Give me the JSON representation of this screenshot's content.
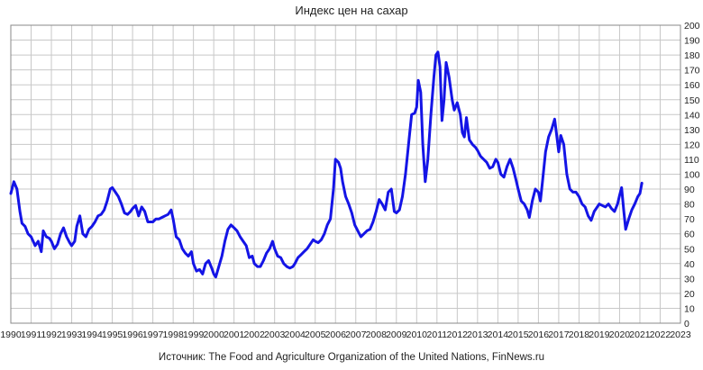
{
  "chart_data": {
    "type": "line",
    "title": "Индекс цен на сахар",
    "source": "Источник: The Food and Agriculture Organization of the United Nations, FinNews.ru",
    "xlabel": "",
    "ylabel": "",
    "xlim": [
      1990,
      2023
    ],
    "ylim": [
      0,
      200
    ],
    "x_ticks": [
      "1990",
      "1991",
      "1992",
      "1993",
      "1994",
      "1995",
      "1996",
      "1997",
      "1998",
      "1999",
      "2000",
      "2001",
      "2002",
      "2003",
      "2004",
      "2005",
      "2006",
      "2007",
      "2008",
      "2009",
      "2010",
      "2011",
      "2012",
      "2013",
      "2014",
      "2015",
      "2016",
      "2017",
      "2018",
      "2019",
      "2020",
      "2021",
      "2022",
      "2023"
    ],
    "y_ticks": [
      0,
      10,
      20,
      30,
      40,
      50,
      60,
      70,
      80,
      90,
      100,
      110,
      120,
      130,
      140,
      150,
      160,
      170,
      180,
      190,
      200
    ],
    "grid": true,
    "line_color": "#1414e6",
    "series": [
      {
        "points": [
          [
            1990.0,
            87
          ],
          [
            1990.15,
            95
          ],
          [
            1990.3,
            90
          ],
          [
            1990.45,
            75
          ],
          [
            1990.55,
            67
          ],
          [
            1990.7,
            65
          ],
          [
            1990.85,
            60
          ],
          [
            1991.0,
            58
          ],
          [
            1991.2,
            52
          ],
          [
            1991.35,
            55
          ],
          [
            1991.5,
            48
          ],
          [
            1991.6,
            62
          ],
          [
            1991.75,
            58
          ],
          [
            1991.9,
            57
          ],
          [
            1992.0,
            55
          ],
          [
            1992.15,
            50
          ],
          [
            1992.3,
            53
          ],
          [
            1992.45,
            60
          ],
          [
            1992.6,
            64
          ],
          [
            1992.75,
            58
          ],
          [
            1992.9,
            54
          ],
          [
            1993.0,
            52
          ],
          [
            1993.15,
            55
          ],
          [
            1993.25,
            65
          ],
          [
            1993.4,
            72
          ],
          [
            1993.55,
            60
          ],
          [
            1993.7,
            58
          ],
          [
            1993.85,
            63
          ],
          [
            1994.0,
            65
          ],
          [
            1994.15,
            68
          ],
          [
            1994.3,
            72
          ],
          [
            1994.45,
            73
          ],
          [
            1994.6,
            76
          ],
          [
            1994.75,
            82
          ],
          [
            1994.9,
            90
          ],
          [
            1995.0,
            91
          ],
          [
            1995.15,
            88
          ],
          [
            1995.3,
            85
          ],
          [
            1995.45,
            80
          ],
          [
            1995.6,
            74
          ],
          [
            1995.75,
            73
          ],
          [
            1995.9,
            75
          ],
          [
            1996.0,
            77
          ],
          [
            1996.15,
            79
          ],
          [
            1996.3,
            72
          ],
          [
            1996.45,
            78
          ],
          [
            1996.6,
            75
          ],
          [
            1996.75,
            68
          ],
          [
            1996.9,
            68
          ],
          [
            1997.0,
            68
          ],
          [
            1997.15,
            70
          ],
          [
            1997.3,
            70
          ],
          [
            1997.45,
            71
          ],
          [
            1997.6,
            72
          ],
          [
            1997.75,
            73
          ],
          [
            1997.9,
            76
          ],
          [
            1998.0,
            70
          ],
          [
            1998.15,
            58
          ],
          [
            1998.3,
            56
          ],
          [
            1998.45,
            50
          ],
          [
            1998.6,
            47
          ],
          [
            1998.75,
            45
          ],
          [
            1998.9,
            48
          ],
          [
            1999.0,
            40
          ],
          [
            1999.15,
            35
          ],
          [
            1999.3,
            36
          ],
          [
            1999.45,
            33
          ],
          [
            1999.6,
            40
          ],
          [
            1999.75,
            42
          ],
          [
            1999.9,
            37
          ],
          [
            2000.0,
            33
          ],
          [
            2000.1,
            31
          ],
          [
            2000.25,
            38
          ],
          [
            2000.4,
            45
          ],
          [
            2000.55,
            55
          ],
          [
            2000.7,
            63
          ],
          [
            2000.85,
            66
          ],
          [
            2001.0,
            64
          ],
          [
            2001.15,
            62
          ],
          [
            2001.3,
            58
          ],
          [
            2001.45,
            55
          ],
          [
            2001.6,
            52
          ],
          [
            2001.75,
            44
          ],
          [
            2001.9,
            45
          ],
          [
            2002.0,
            40
          ],
          [
            2002.15,
            38
          ],
          [
            2002.3,
            38
          ],
          [
            2002.45,
            42
          ],
          [
            2002.6,
            47
          ],
          [
            2002.75,
            50
          ],
          [
            2002.9,
            55
          ],
          [
            2003.0,
            50
          ],
          [
            2003.15,
            45
          ],
          [
            2003.3,
            44
          ],
          [
            2003.45,
            40
          ],
          [
            2003.6,
            38
          ],
          [
            2003.75,
            37
          ],
          [
            2003.9,
            38
          ],
          [
            2004.0,
            40
          ],
          [
            2004.15,
            44
          ],
          [
            2004.3,
            46
          ],
          [
            2004.45,
            48
          ],
          [
            2004.6,
            50
          ],
          [
            2004.75,
            53
          ],
          [
            2004.9,
            56
          ],
          [
            2005.0,
            55
          ],
          [
            2005.15,
            54
          ],
          [
            2005.3,
            56
          ],
          [
            2005.45,
            60
          ],
          [
            2005.6,
            66
          ],
          [
            2005.75,
            70
          ],
          [
            2005.9,
            90
          ],
          [
            2006.0,
            110
          ],
          [
            2006.15,
            108
          ],
          [
            2006.25,
            104
          ],
          [
            2006.35,
            95
          ],
          [
            2006.5,
            85
          ],
          [
            2006.65,
            80
          ],
          [
            2006.8,
            74
          ],
          [
            2006.95,
            66
          ],
          [
            2007.1,
            62
          ],
          [
            2007.25,
            58
          ],
          [
            2007.4,
            60
          ],
          [
            2007.55,
            62
          ],
          [
            2007.7,
            63
          ],
          [
            2007.85,
            68
          ],
          [
            2008.0,
            75
          ],
          [
            2008.15,
            83
          ],
          [
            2008.3,
            80
          ],
          [
            2008.45,
            76
          ],
          [
            2008.6,
            88
          ],
          [
            2008.75,
            90
          ],
          [
            2008.9,
            75
          ],
          [
            2009.0,
            74
          ],
          [
            2009.15,
            76
          ],
          [
            2009.3,
            85
          ],
          [
            2009.45,
            100
          ],
          [
            2009.6,
            120
          ],
          [
            2009.75,
            140
          ],
          [
            2009.9,
            141
          ],
          [
            2010.0,
            145
          ],
          [
            2010.08,
            163
          ],
          [
            2010.2,
            155
          ],
          [
            2010.3,
            120
          ],
          [
            2010.42,
            95
          ],
          [
            2010.55,
            110
          ],
          [
            2010.7,
            140
          ],
          [
            2010.85,
            165
          ],
          [
            2010.95,
            180
          ],
          [
            2011.05,
            182
          ],
          [
            2011.15,
            172
          ],
          [
            2011.25,
            136
          ],
          [
            2011.35,
            150
          ],
          [
            2011.45,
            175
          ],
          [
            2011.6,
            165
          ],
          [
            2011.75,
            150
          ],
          [
            2011.85,
            143
          ],
          [
            2012.0,
            148
          ],
          [
            2012.15,
            140
          ],
          [
            2012.25,
            128
          ],
          [
            2012.35,
            125
          ],
          [
            2012.45,
            138
          ],
          [
            2012.6,
            123
          ],
          [
            2012.75,
            120
          ],
          [
            2012.9,
            118
          ],
          [
            2013.0,
            116
          ],
          [
            2013.15,
            112
          ],
          [
            2013.3,
            110
          ],
          [
            2013.45,
            108
          ],
          [
            2013.6,
            104
          ],
          [
            2013.75,
            105
          ],
          [
            2013.9,
            110
          ],
          [
            2014.0,
            108
          ],
          [
            2014.15,
            100
          ],
          [
            2014.3,
            98
          ],
          [
            2014.45,
            105
          ],
          [
            2014.6,
            110
          ],
          [
            2014.75,
            104
          ],
          [
            2014.9,
            96
          ],
          [
            2015.0,
            90
          ],
          [
            2015.15,
            82
          ],
          [
            2015.3,
            80
          ],
          [
            2015.45,
            76
          ],
          [
            2015.55,
            71
          ],
          [
            2015.7,
            82
          ],
          [
            2015.85,
            90
          ],
          [
            2016.0,
            88
          ],
          [
            2016.1,
            82
          ],
          [
            2016.2,
            95
          ],
          [
            2016.35,
            115
          ],
          [
            2016.5,
            125
          ],
          [
            2016.65,
            130
          ],
          [
            2016.8,
            137
          ],
          [
            2016.9,
            126
          ],
          [
            2017.0,
            115
          ],
          [
            2017.1,
            126
          ],
          [
            2017.25,
            120
          ],
          [
            2017.4,
            100
          ],
          [
            2017.55,
            90
          ],
          [
            2017.7,
            88
          ],
          [
            2017.85,
            88
          ],
          [
            2018.0,
            85
          ],
          [
            2018.15,
            80
          ],
          [
            2018.3,
            78
          ],
          [
            2018.45,
            72
          ],
          [
            2018.6,
            69
          ],
          [
            2018.75,
            75
          ],
          [
            2018.9,
            78
          ],
          [
            2019.0,
            80
          ],
          [
            2019.15,
            79
          ],
          [
            2019.3,
            78
          ],
          [
            2019.45,
            80
          ],
          [
            2019.6,
            77
          ],
          [
            2019.75,
            75
          ],
          [
            2019.9,
            80
          ],
          [
            2020.0,
            86
          ],
          [
            2020.1,
            91
          ],
          [
            2020.2,
            76
          ],
          [
            2020.3,
            63
          ],
          [
            2020.45,
            70
          ],
          [
            2020.6,
            76
          ],
          [
            2020.75,
            80
          ],
          [
            2020.9,
            85
          ],
          [
            2021.0,
            87
          ],
          [
            2021.1,
            94
          ]
        ]
      }
    ]
  }
}
